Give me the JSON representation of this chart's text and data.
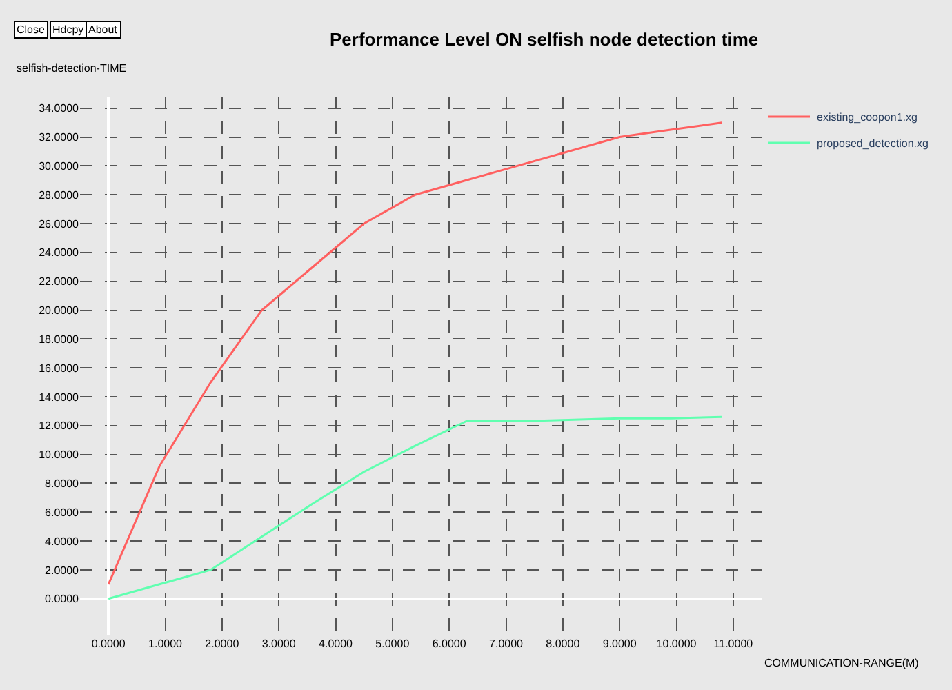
{
  "chart_data": {
    "type": "line",
    "title": "Performance Level ON selfish node detection time",
    "xlabel": "COMMUNICATION-RANGE(M)",
    "ylabel": "selfish-detection-TIME",
    "annotations": [
      "Close",
      "Hdcpy",
      "About"
    ],
    "x": [
      0,
      0.9,
      1.8,
      2.7,
      3.6,
      4.5,
      5.4,
      6.3,
      7.2,
      8.1,
      9,
      9.9,
      10.8
    ],
    "series": [
      {
        "name": "existing_coopon1.xg",
        "color": "#ff6060",
        "values": [
          1,
          9.2,
          15,
          20,
          23,
          26,
          28,
          29,
          30,
          31,
          32,
          32.5,
          33
        ]
      },
      {
        "name": "proposed_detection.xg",
        "color": "#60ffb0",
        "values": [
          0,
          1,
          2,
          4.3,
          6.6,
          8.8,
          10.6,
          12.3,
          12.3,
          12.4,
          12.5,
          12.5,
          12.6
        ]
      }
    ],
    "xlim": [
      -0.5,
      11.5
    ],
    "ylim": [
      -2.5,
      34.8
    ],
    "xticks": [
      {
        "value": 0,
        "label": "0.0000"
      },
      {
        "value": 1,
        "label": "1.0000"
      },
      {
        "value": 2,
        "label": "2.0000"
      },
      {
        "value": 3,
        "label": "3.0000"
      },
      {
        "value": 4,
        "label": "4.0000"
      },
      {
        "value": 5,
        "label": "5.0000"
      },
      {
        "value": 6,
        "label": "6.0000"
      },
      {
        "value": 7,
        "label": "7.0000"
      },
      {
        "value": 8,
        "label": "8.0000"
      },
      {
        "value": 9,
        "label": "9.0000"
      },
      {
        "value": 10,
        "label": "10.0000"
      },
      {
        "value": 11,
        "label": "11.0000"
      }
    ],
    "yticks": [
      {
        "value": 0,
        "label": "0.0000"
      },
      {
        "value": 2,
        "label": "2.0000"
      },
      {
        "value": 4,
        "label": "4.0000"
      },
      {
        "value": 6,
        "label": "6.0000"
      },
      {
        "value": 8,
        "label": "8.0000"
      },
      {
        "value": 10,
        "label": "10.0000"
      },
      {
        "value": 12,
        "label": "12.0000"
      },
      {
        "value": 14,
        "label": "14.0000"
      },
      {
        "value": 16,
        "label": "16.0000"
      },
      {
        "value": 18,
        "label": "18.0000"
      },
      {
        "value": 20,
        "label": "20.0000"
      },
      {
        "value": 22,
        "label": "22.0000"
      },
      {
        "value": 24,
        "label": "24.0000"
      },
      {
        "value": 26,
        "label": "26.0000"
      },
      {
        "value": 28,
        "label": "28.0000"
      },
      {
        "value": 30,
        "label": "30.0000"
      },
      {
        "value": 32,
        "label": "32.0000"
      },
      {
        "value": 34,
        "label": "34.0000"
      }
    ],
    "grid": true,
    "legend": "top right",
    "marker": "none",
    "line_style": "solid"
  }
}
